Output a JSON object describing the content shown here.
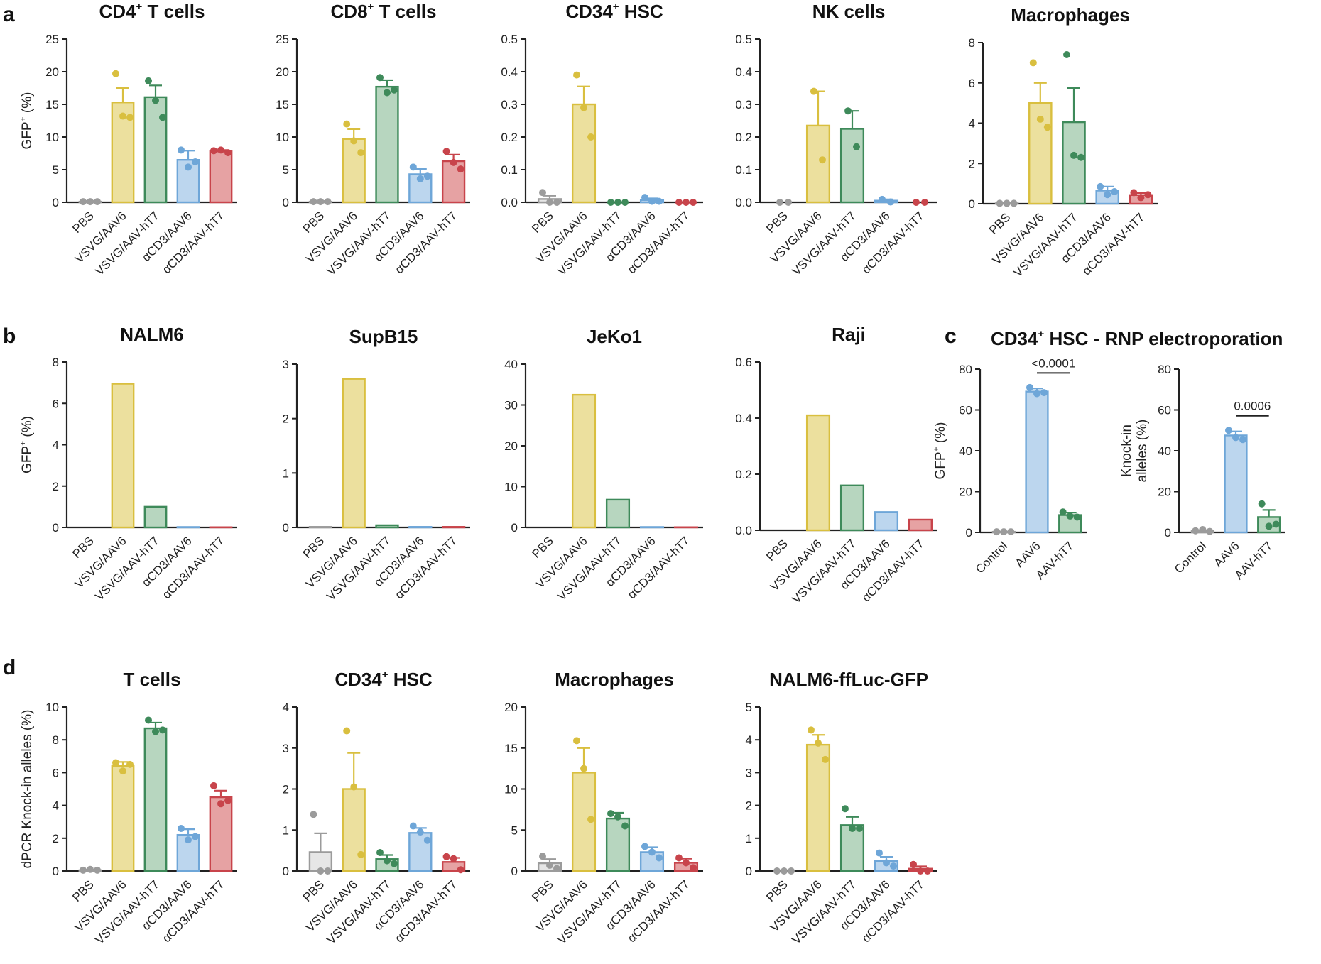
{
  "figure": {
    "panel_letters": [
      "a",
      "b",
      "c",
      "d"
    ],
    "colors": {
      "gray": "#9b9b9b",
      "gray_fill": "#e6e6e6",
      "yellow": "#d9bf3f",
      "yellow_fill": "#ece09e",
      "green": "#3e8a5a",
      "green_fill": "#b7d6bf",
      "blue": "#6ea6d8",
      "blue_fill": "#bcd6ee",
      "red": "#c8444b",
      "red_fill": "#e6a2a3"
    },
    "c_title": {
      "main": "CD34",
      "sup": "+",
      "rest": " HSC - RNP electroporation"
    }
  },
  "chart_data": [
    {
      "id": "a1",
      "panel": "a",
      "type": "bar",
      "title": "CD4",
      "title_sup": "+",
      "title_rest": " T cells",
      "ylabel": "GFP",
      "ylabel_sup": "+",
      "ylabel_rest": " (%)",
      "ylim": [
        0,
        25
      ],
      "yticks": [
        "0",
        "5",
        "10",
        "15",
        "20",
        "25"
      ],
      "categories": [
        "PBS",
        "VSVG/AAV6",
        "VSVG/AAV-hT7",
        "αCD3/AAV6",
        "αCD3/AAV-hT7"
      ],
      "colors": [
        "gray",
        "yellow",
        "green",
        "blue",
        "red"
      ],
      "fill": true,
      "values": [
        0.1,
        15.3,
        16.1,
        6.5,
        7.8
      ],
      "errors": [
        0.1,
        2.2,
        1.8,
        1.4,
        0.2
      ],
      "points": [
        [
          0.1,
          0.1,
          0.1
        ],
        [
          19.7,
          13.2,
          13.0
        ],
        [
          18.6,
          15.6,
          13.0
        ],
        [
          8.0,
          5.4,
          6.2
        ],
        [
          7.9,
          8.0,
          7.6
        ]
      ]
    },
    {
      "id": "a2",
      "panel": "a",
      "type": "bar",
      "title": "CD8",
      "title_sup": "+",
      "title_rest": " T cells",
      "ylim": [
        0,
        25
      ],
      "yticks": [
        "0",
        "5",
        "10",
        "15",
        "20",
        "25"
      ],
      "categories": [
        "PBS",
        "VSVG/AAV6",
        "VSVG/AAV-hT7",
        "αCD3/AAV6",
        "αCD3/AAV-hT7"
      ],
      "colors": [
        "gray",
        "yellow",
        "green",
        "blue",
        "red"
      ],
      "fill": true,
      "values": [
        0.1,
        9.7,
        17.7,
        4.3,
        6.3
      ],
      "errors": [
        0.1,
        1.5,
        1.0,
        0.8,
        1.0
      ],
      "points": [
        [
          0.1,
          0.1,
          0.1
        ],
        [
          12.0,
          9.4,
          7.6
        ],
        [
          19.1,
          16.8,
          17.2
        ],
        [
          5.4,
          3.6,
          4.0
        ],
        [
          7.8,
          6.1,
          5.1
        ]
      ]
    },
    {
      "id": "a3",
      "panel": "a",
      "type": "bar",
      "title": "CD34",
      "title_sup": "+",
      "title_rest": " HSC",
      "ylim": [
        0,
        0.5
      ],
      "yticks": [
        "0.0",
        "0.1",
        "0.2",
        "0.3",
        "0.4",
        "0.5"
      ],
      "categories": [
        "PBS",
        "VSVG/AAV6",
        "VSVG/AAV-hT7",
        "αCD3/AAV6",
        "αCD3/AAV-hT7"
      ],
      "colors": [
        "gray",
        "yellow",
        "green",
        "blue",
        "red"
      ],
      "fill": true,
      "values": [
        0.01,
        0.3,
        0.0,
        0.007,
        0.0
      ],
      "errors": [
        0.01,
        0.055,
        0.0,
        0.005,
        0.0
      ],
      "points": [
        [
          0.03,
          0.0,
          0.0
        ],
        [
          0.39,
          0.29,
          0.2
        ],
        [
          0.0,
          0.0,
          0.0
        ],
        [
          0.015,
          0.003,
          0.003
        ],
        [
          0.0,
          0.0,
          0.0
        ]
      ]
    },
    {
      "id": "a4",
      "panel": "a",
      "type": "bar",
      "title": "NK cells",
      "title_sup": "",
      "title_rest": "",
      "ylim": [
        0,
        0.5
      ],
      "yticks": [
        "0.0",
        "0.1",
        "0.2",
        "0.3",
        "0.4",
        "0.5"
      ],
      "categories": [
        "PBS",
        "VSVG/AAV6",
        "VSVG/AAV-hT7",
        "αCD3/AAV6",
        "αCD3/AAV-hT7"
      ],
      "colors": [
        "gray",
        "yellow",
        "green",
        "blue",
        "red"
      ],
      "fill": true,
      "values": [
        0.0,
        0.235,
        0.225,
        0.005,
        0.0
      ],
      "errors": [
        0.0,
        0.105,
        0.055,
        0.004,
        0.0
      ],
      "points": [
        [
          0.0,
          0.0
        ],
        [
          0.34,
          0.13
        ],
        [
          0.28,
          0.17
        ],
        [
          0.009,
          0.001
        ],
        [
          0.0,
          0.0
        ]
      ]
    },
    {
      "id": "a5",
      "panel": "a",
      "type": "bar",
      "title": "Macrophages",
      "title_sup": "",
      "title_rest": "",
      "ylim": [
        0,
        8
      ],
      "yticks": [
        "0",
        "2",
        "4",
        "6",
        "8"
      ],
      "categories": [
        "PBS",
        "VSVG/AAV6",
        "VSVG/AAV-hT7",
        "αCD3/AAV6",
        "αCD3/AAV-hT7"
      ],
      "colors": [
        "gray",
        "yellow",
        "green",
        "blue",
        "red"
      ],
      "fill": true,
      "values": [
        0.02,
        5.0,
        4.05,
        0.65,
        0.43
      ],
      "errors": [
        0.02,
        1.0,
        1.7,
        0.2,
        0.1
      ],
      "points": [
        [
          0.02,
          0.02,
          0.02
        ],
        [
          7.0,
          4.2,
          3.8
        ],
        [
          7.4,
          2.4,
          2.3
        ],
        [
          0.85,
          0.45,
          0.6
        ],
        [
          0.55,
          0.3,
          0.45
        ]
      ]
    },
    {
      "id": "b1",
      "panel": "b",
      "type": "bar",
      "title": "NALM6",
      "title_sup": "",
      "title_rest": "",
      "ylabel": "GFP",
      "ylabel_sup": "+",
      "ylabel_rest": " (%)",
      "ylim": [
        0,
        8
      ],
      "yticks": [
        "0",
        "2",
        "4",
        "6",
        "8"
      ],
      "categories": [
        "PBS",
        "VSVG/AAV6",
        "VSVG/AAV-hT7",
        "αCD3/AAV6",
        "αCD3/AAV-hT7"
      ],
      "colors": [
        "gray",
        "yellow",
        "green",
        "blue",
        "red"
      ],
      "fill": true,
      "values": [
        0.0,
        6.95,
        1.0,
        0.02,
        0.01
      ]
    },
    {
      "id": "b2",
      "panel": "b",
      "type": "bar",
      "title": "SupB15",
      "title_sup": "",
      "title_rest": "",
      "ylim": [
        0,
        3
      ],
      "yticks": [
        "0",
        "1",
        "2",
        "3"
      ],
      "categories": [
        "PBS",
        "VSVG/AAV6",
        "VSVG/AAV-hT7",
        "αCD3/AAV6",
        "αCD3/AAV-hT7"
      ],
      "colors": [
        "gray",
        "yellow",
        "green",
        "blue",
        "red"
      ],
      "fill": true,
      "values": [
        0.01,
        2.73,
        0.04,
        0.01,
        0.01
      ]
    },
    {
      "id": "b3",
      "panel": "b",
      "type": "bar",
      "title": "JeKo1",
      "title_sup": "",
      "title_rest": "",
      "ylim": [
        0,
        40
      ],
      "yticks": [
        "0",
        "10",
        "20",
        "30",
        "40"
      ],
      "categories": [
        "PBS",
        "VSVG/AAV6",
        "VSVG/AAV-hT7",
        "αCD3/AAV6",
        "αCD3/AAV-hT7"
      ],
      "colors": [
        "gray",
        "yellow",
        "green",
        "blue",
        "red"
      ],
      "fill": true,
      "values": [
        0.0,
        32.5,
        6.8,
        0.1,
        0.05
      ]
    },
    {
      "id": "b4",
      "panel": "b",
      "type": "bar",
      "title": "Raji",
      "title_sup": "",
      "title_rest": "",
      "ylim": [
        0,
        0.6
      ],
      "yticks": [
        "0.0",
        "0.2",
        "0.4",
        "0.6"
      ],
      "categories": [
        "PBS",
        "VSVG/AAV6",
        "VSVG/AAV-hT7",
        "αCD3/AAV6",
        "αCD3/AAV-hT7"
      ],
      "colors": [
        "gray",
        "yellow",
        "green",
        "blue",
        "red"
      ],
      "fill": true,
      "values": [
        0.0,
        0.41,
        0.16,
        0.065,
        0.038
      ]
    },
    {
      "id": "c1",
      "panel": "c",
      "type": "bar",
      "title": "",
      "title_sup": "",
      "title_rest": "",
      "ylabel": "GFP",
      "ylabel_sup": "+",
      "ylabel_rest": " (%)",
      "ylim": [
        0,
        80
      ],
      "yticks": [
        "0",
        "20",
        "40",
        "60",
        "80"
      ],
      "categories": [
        "Control",
        "AAV6",
        "AAV-hT7"
      ],
      "colors": [
        "gray",
        "blue",
        "green"
      ],
      "fill": true,
      "values": [
        0.3,
        69,
        8.5
      ],
      "errors": [
        0.1,
        1.5,
        1.2
      ],
      "points": [
        [
          0.3,
          0.3,
          0.3
        ],
        [
          71,
          68,
          68.5
        ],
        [
          10,
          8,
          7.5
        ]
      ],
      "annotation": {
        "text": "<0.0001",
        "from": 1,
        "to": 2
      }
    },
    {
      "id": "c2",
      "panel": "c",
      "type": "bar",
      "title": "",
      "title_sup": "",
      "title_rest": "",
      "ylabel": "Knock-in",
      "ylabel2": "alleles (%)",
      "ylim": [
        0,
        80
      ],
      "yticks": [
        "0",
        "20",
        "40",
        "60",
        "80"
      ],
      "categories": [
        "Control",
        "AAV6",
        "AAV-hT7"
      ],
      "colors": [
        "gray",
        "blue",
        "green"
      ],
      "fill": true,
      "values": [
        0.8,
        47.5,
        7.5
      ],
      "errors": [
        0.3,
        2.0,
        3.5
      ],
      "points": [
        [
          0.8,
          1.4,
          0.5
        ],
        [
          50,
          46.5,
          45.5
        ],
        [
          14,
          3,
          4
        ]
      ],
      "annotation": {
        "text": "0.0006",
        "from": 1,
        "to": 2
      }
    },
    {
      "id": "d1",
      "panel": "d",
      "type": "bar",
      "title": "T cells",
      "title_sup": "",
      "title_rest": "",
      "ylabel": "dPCR Knock-in alleles (%)",
      "ylim": [
        0,
        10
      ],
      "yticks": [
        "0",
        "2",
        "4",
        "6",
        "8",
        "10"
      ],
      "categories": [
        "PBS",
        "VSVG/AAV6",
        "VSVG/AAV-hT7",
        "αCD3/AAV6",
        "αCD3/AAV-hT7"
      ],
      "colors": [
        "gray",
        "yellow",
        "green",
        "blue",
        "red"
      ],
      "fill": true,
      "values": [
        0.05,
        6.4,
        8.7,
        2.2,
        4.5
      ],
      "errors": [
        0.03,
        0.25,
        0.35,
        0.35,
        0.4
      ],
      "points": [
        [
          0.05,
          0.1,
          0.05
        ],
        [
          6.6,
          6.1,
          6.5
        ],
        [
          9.2,
          8.5,
          8.6
        ],
        [
          2.6,
          1.9,
          2.1
        ],
        [
          5.2,
          4.1,
          4.3
        ]
      ]
    },
    {
      "id": "d2",
      "panel": "d",
      "type": "bar",
      "title": "CD34",
      "title_sup": "+",
      "title_rest": " HSC",
      "ylim": [
        0,
        4
      ],
      "yticks": [
        "0",
        "1",
        "2",
        "3",
        "4"
      ],
      "categories": [
        "PBS",
        "VSVG/AAV6",
        "VSVG/AAV-hT7",
        "αCD3/AAV6",
        "αCD3/AAV-hT7"
      ],
      "colors": [
        "gray",
        "yellow",
        "green",
        "blue",
        "red"
      ],
      "fill": true,
      "values": [
        0.46,
        2.0,
        0.29,
        0.93,
        0.22
      ],
      "errors": [
        0.46,
        0.88,
        0.1,
        0.12,
        0.1
      ],
      "points": [
        [
          1.38,
          0.0,
          0.0
        ],
        [
          3.42,
          2.05,
          0.4
        ],
        [
          0.45,
          0.25,
          0.18
        ],
        [
          1.1,
          0.95,
          0.75
        ],
        [
          0.35,
          0.3,
          0.03
        ]
      ]
    },
    {
      "id": "d3",
      "panel": "d",
      "type": "bar",
      "title": "Macrophages",
      "title_sup": "",
      "title_rest": "",
      "ylim": [
        0,
        20
      ],
      "yticks": [
        "0",
        "5",
        "10",
        "15",
        "20"
      ],
      "categories": [
        "PBS",
        "VSVG/AAV6",
        "VSVG/AAV-hT7",
        "αCD3/AAV6",
        "αCD3/AAV-hT7"
      ],
      "colors": [
        "gray",
        "yellow",
        "green",
        "blue",
        "red"
      ],
      "fill": true,
      "values": [
        0.95,
        12.0,
        6.4,
        2.3,
        1.0
      ],
      "errors": [
        0.5,
        3.0,
        0.7,
        0.6,
        0.5
      ],
      "points": [
        [
          1.8,
          0.7,
          0.3
        ],
        [
          15.9,
          12.5,
          6.3
        ],
        [
          7.0,
          6.6,
          5.5
        ],
        [
          3.0,
          2.3,
          1.6
        ],
        [
          1.6,
          1.0,
          0.4
        ]
      ]
    },
    {
      "id": "d4",
      "panel": "d",
      "type": "bar",
      "title": "NALM6-ffLuc-GFP",
      "title_sup": "",
      "title_rest": "",
      "ylim": [
        0,
        5
      ],
      "yticks": [
        "0",
        "1",
        "2",
        "3",
        "4",
        "5"
      ],
      "categories": [
        "PBS",
        "VSVG/AAV6",
        "VSVG/AAV-hT7",
        "αCD3/AAV6",
        "αCD3/AAV-hT7"
      ],
      "colors": [
        "gray",
        "yellow",
        "green",
        "blue",
        "red"
      ],
      "fill": true,
      "values": [
        0.0,
        3.85,
        1.4,
        0.3,
        0.07
      ],
      "errors": [
        0.0,
        0.3,
        0.25,
        0.13,
        0.07
      ],
      "points": [
        [
          0.0,
          0.0,
          0.0
        ],
        [
          4.3,
          3.9,
          3.4
        ],
        [
          1.9,
          1.3,
          1.3
        ],
        [
          0.55,
          0.25,
          0.15
        ],
        [
          0.2,
          0.0,
          0.0
        ]
      ]
    }
  ]
}
